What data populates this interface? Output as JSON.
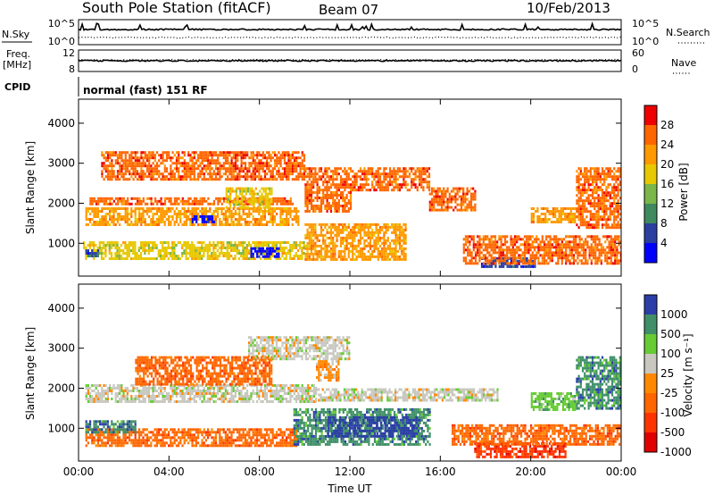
{
  "header": {
    "title": "South Pole Station (fitACF)",
    "beam": "Beam 07",
    "date": "10/Feb/2013"
  },
  "top_panels": {
    "nsky_label": "N.Sky",
    "nsky_ticks": [
      "10^5",
      "10^0"
    ],
    "nsearch_label": "N.Search",
    "nsearch_ticks": [
      "10^5",
      "10^0"
    ],
    "freq_label_1": "Freq.",
    "freq_label_2": "[MHz]",
    "freq_ticks": [
      "12",
      "8"
    ],
    "nave_label": "Nave",
    "nave_ticks": [
      "60",
      "0"
    ],
    "cpid_label": "CPID",
    "cpid_value": "normal (fast) 151 RF"
  },
  "chart_data": [
    {
      "type": "heatmap",
      "name": "power",
      "ylabel": "Slant Range [km]",
      "ylim": [
        180,
        4600
      ],
      "yticks": [
        1000,
        2000,
        3000,
        4000
      ],
      "xlim": [
        0,
        24
      ],
      "xticks": [
        "00:00",
        "04:00",
        "08:00",
        "12:00",
        "16:00",
        "20:00",
        "00:00"
      ],
      "colorbar": {
        "label": "Power [dB]",
        "ticks": [
          "28",
          "24",
          "20",
          "16",
          "12",
          "8",
          "4"
        ],
        "colors": [
          "#ee0000",
          "#ff6600",
          "#ff9900",
          "#e8c800",
          "#7ab648",
          "#3e8a5e",
          "#2a3fa0",
          "#0000ff"
        ]
      },
      "regions": [
        {
          "t0": 0.3,
          "t1": 9.7,
          "r0": 1480,
          "r1": 1900,
          "level": 2
        },
        {
          "t0": 0.4,
          "t1": 9.5,
          "r0": 1950,
          "r1": 2150,
          "level": 1
        },
        {
          "t0": 5.0,
          "t1": 6.0,
          "r0": 1500,
          "r1": 1700,
          "level": 7
        },
        {
          "t0": 0.2,
          "t1": 10.0,
          "r0": 600,
          "r1": 1050,
          "level": 3
        },
        {
          "t0": 7.6,
          "t1": 8.9,
          "r0": 650,
          "r1": 900,
          "level": 7
        },
        {
          "t0": 0.3,
          "t1": 0.9,
          "r0": 650,
          "r1": 850,
          "level": 6
        },
        {
          "t0": 10.0,
          "t1": 14.5,
          "r0": 600,
          "r1": 1500,
          "level": 2
        },
        {
          "t0": 1.0,
          "t1": 10.0,
          "r0": 2600,
          "r1": 3300,
          "level": 1
        },
        {
          "t0": 10.0,
          "t1": 15.5,
          "r0": 2300,
          "r1": 2900,
          "level": 1
        },
        {
          "t0": 15.5,
          "t1": 17.5,
          "r0": 1800,
          "r1": 2400,
          "level": 1
        },
        {
          "t0": 17.8,
          "t1": 20.2,
          "r0": 400,
          "r1": 650,
          "level": 6
        },
        {
          "t0": 17.0,
          "t1": 24.0,
          "r0": 500,
          "r1": 1200,
          "level": 1
        },
        {
          "t0": 20.0,
          "t1": 22.0,
          "r0": 1500,
          "r1": 1900,
          "level": 2
        },
        {
          "t0": 22.0,
          "t1": 24.0,
          "r0": 1400,
          "r1": 2900,
          "level": 1
        },
        {
          "t0": 6.5,
          "t1": 8.5,
          "r0": 1900,
          "r1": 2400,
          "level": 3
        },
        {
          "t0": 10.0,
          "t1": 12.0,
          "r0": 1800,
          "r1": 2300,
          "level": 1
        }
      ]
    },
    {
      "type": "heatmap",
      "name": "velocity",
      "ylabel": "Slant Range [km]",
      "ylim": [
        180,
        4600
      ],
      "yticks": [
        1000,
        2000,
        3000,
        4000
      ],
      "xlim": [
        0,
        24
      ],
      "xticks": [
        "00:00",
        "04:00",
        "08:00",
        "12:00",
        "16:00",
        "20:00",
        "00:00"
      ],
      "xlabel": "Time UT",
      "colorbar": {
        "label": "Velocity [m s⁻¹]",
        "ticks": [
          "1000",
          "500",
          "100",
          "25",
          "-25",
          "-100",
          "-500",
          "-1000"
        ],
        "colors": [
          "#2b3ea8",
          "#3f8f68",
          "#66cc33",
          "#c8c8c0",
          "#ff8800",
          "#ff6600",
          "#ff3300",
          "#e00000"
        ]
      },
      "regions": [
        {
          "t0": 0.3,
          "t1": 10.5,
          "r0": 1650,
          "r1": 2100,
          "level": 3
        },
        {
          "t0": 10.5,
          "t1": 18.5,
          "r0": 1700,
          "r1": 2000,
          "level": 3
        },
        {
          "t0": 20.0,
          "t1": 22.0,
          "r0": 1450,
          "r1": 1900,
          "level": 2
        },
        {
          "t0": 0.3,
          "t1": 9.6,
          "r0": 550,
          "r1": 1000,
          "level": 5
        },
        {
          "t0": 0.3,
          "t1": 2.5,
          "r0": 900,
          "r1": 1200,
          "level": 1
        },
        {
          "t0": 9.5,
          "t1": 15.5,
          "r0": 600,
          "r1": 1500,
          "level": 1
        },
        {
          "t0": 11.0,
          "t1": 15.0,
          "r0": 800,
          "r1": 1300,
          "level": 0
        },
        {
          "t0": 17.5,
          "t1": 21.5,
          "r0": 300,
          "r1": 650,
          "level": 6
        },
        {
          "t0": 16.5,
          "t1": 24.0,
          "r0": 600,
          "r1": 1100,
          "level": 5
        },
        {
          "t0": 7.5,
          "t1": 12.0,
          "r0": 2700,
          "r1": 3300,
          "level": 3
        },
        {
          "t0": 10.5,
          "t1": 11.5,
          "r0": 2200,
          "r1": 2700,
          "level": 4
        },
        {
          "t0": 2.5,
          "t1": 8.5,
          "r0": 2100,
          "r1": 2800,
          "level": 5
        },
        {
          "t0": 22.0,
          "t1": 24.0,
          "r0": 1500,
          "r1": 2800,
          "level": 1
        }
      ]
    }
  ]
}
